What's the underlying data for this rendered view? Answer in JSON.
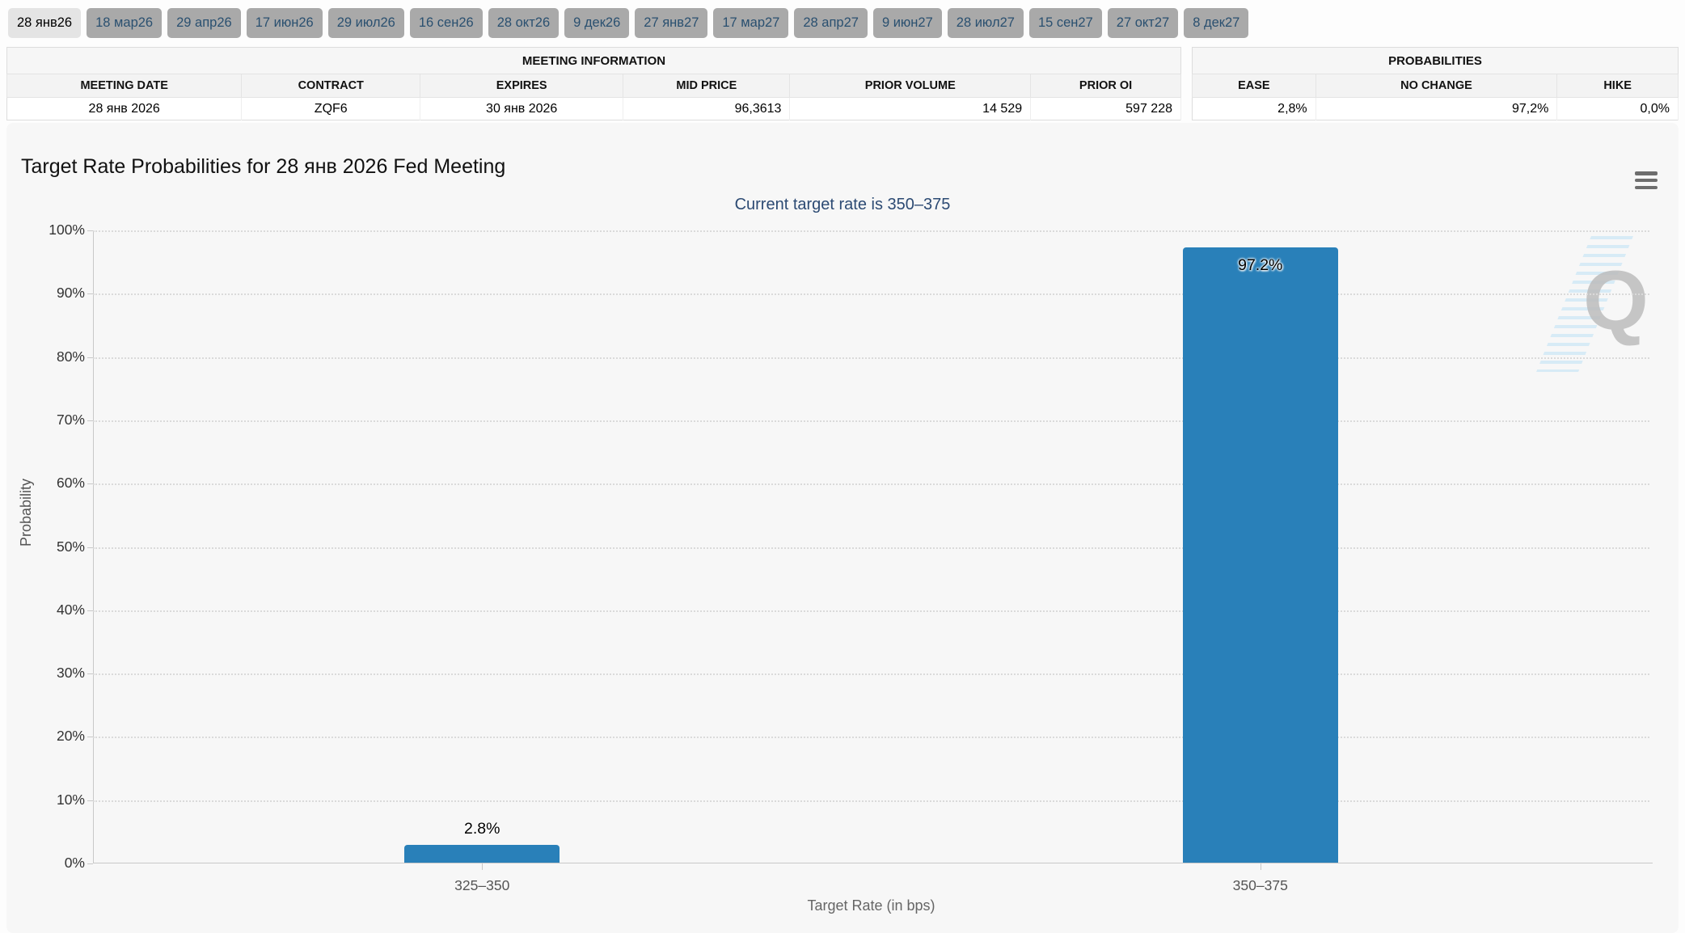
{
  "tabs": {
    "selected_index": 0,
    "items": [
      "28 янв26",
      "18 мар26",
      "29 апр26",
      "17 июн26",
      "29 июл26",
      "16 сен26",
      "28 окт26",
      "9 дек26",
      "27 янв27",
      "17 мар27",
      "28 апр27",
      "9 июн27",
      "28 июл27",
      "15 сен27",
      "27 окт27",
      "8 дек27"
    ]
  },
  "meeting_info": {
    "title": "MEETING INFORMATION",
    "columns": [
      {
        "label": "MEETING DATE",
        "value": "28 янв 2026",
        "align": "center",
        "width": "20%"
      },
      {
        "label": "CONTRACT",
        "value": "ZQF6",
        "align": "center",
        "width": "15.2%"
      },
      {
        "label": "EXPIRES",
        "value": "30 янв 2026",
        "align": "center",
        "width": "17.3%"
      },
      {
        "label": "MID PRICE",
        "value": "96,3613",
        "align": "right",
        "width": "14.2%"
      },
      {
        "label": "PRIOR VOLUME",
        "value": "14 529",
        "align": "right",
        "width": "20.5%"
      },
      {
        "label": "PRIOR OI",
        "value": "597 228",
        "align": "right",
        "width": "12.8%"
      }
    ]
  },
  "probabilities": {
    "title": "PROBABILITIES",
    "columns": [
      {
        "label": "EASE",
        "value": "2,8%",
        "align": "right",
        "width": "25.4%"
      },
      {
        "label": "NO CHANGE",
        "value": "97,2%",
        "align": "right",
        "width": "49.7%"
      },
      {
        "label": "HIKE",
        "value": "0,0%",
        "align": "right",
        "width": "24.9%"
      }
    ]
  },
  "chart_data": {
    "type": "bar",
    "title": "Target Rate Probabilities for 28 янв 2026 Fed Meeting",
    "subtitle": "Current target rate is 350–375",
    "categories": [
      "325–350",
      "350–375"
    ],
    "values": [
      2.8,
      97.2
    ],
    "value_labels": [
      "2.8%",
      "97.2%"
    ],
    "xlabel": "Target Rate (in bps)",
    "ylabel": "Probability",
    "ylim": [
      0,
      100
    ],
    "ytick_step": 10,
    "ytick_suffix": "%",
    "bar_color": "#2980b9",
    "grid": "dotted-horizontal",
    "legend": "none",
    "watermark_letter": "Q"
  }
}
